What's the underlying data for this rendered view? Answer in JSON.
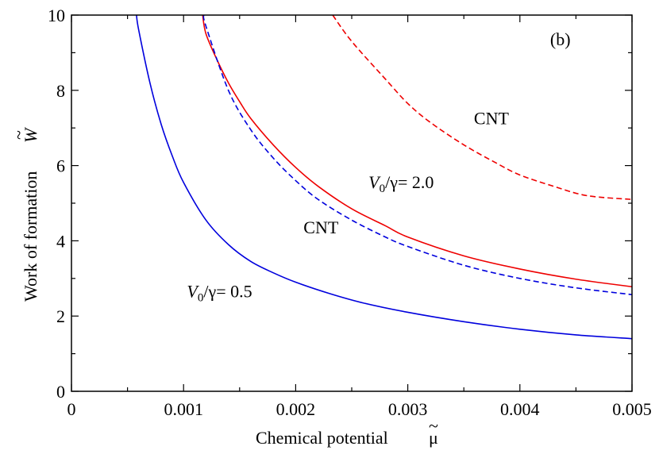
{
  "chart_data": {
    "type": "line",
    "panel_label": "(b)",
    "xlabel": "Chemical potential",
    "xlabel_symbol": "μ",
    "xlabel_symbol_accent": "~",
    "ylabel": "Work of formation",
    "ylabel_symbol": "W",
    "ylabel_symbol_accent": "~",
    "xlim": [
      0,
      0.005
    ],
    "ylim": [
      0,
      10
    ],
    "xticks": [
      0,
      0.001,
      0.002,
      0.003,
      0.004,
      0.005
    ],
    "xtick_labels": [
      "0",
      "0.001",
      "0.002",
      "0.003",
      "0.004",
      "0.005"
    ],
    "yticks": [
      0,
      2,
      4,
      6,
      8,
      10
    ],
    "ytick_labels": [
      "0",
      "2",
      "4",
      "6",
      "8",
      "10"
    ],
    "grid": false,
    "colors": {
      "blue": "#0000dd",
      "red": "#ee0000"
    },
    "series": [
      {
        "name": "V0/γ = 0.5",
        "color": "blue",
        "style": "solid",
        "x": [
          0.00058,
          0.0006,
          0.0007,
          0.0008,
          0.0009,
          0.001,
          0.0012,
          0.0014,
          0.0016,
          0.0018,
          0.002,
          0.0023,
          0.0026,
          0.003,
          0.0035,
          0.004,
          0.0045,
          0.005
        ],
        "y": [
          10.0,
          9.6,
          8.2,
          7.1,
          6.25,
          5.55,
          4.55,
          3.9,
          3.45,
          3.15,
          2.9,
          2.6,
          2.35,
          2.1,
          1.85,
          1.65,
          1.5,
          1.4
        ]
      },
      {
        "name": "V0/γ = 2.0",
        "color": "red",
        "style": "solid",
        "x": [
          0.00117,
          0.0012,
          0.0013,
          0.0014,
          0.0015,
          0.0016,
          0.0018,
          0.002,
          0.0022,
          0.0025,
          0.0028,
          0.003,
          0.0035,
          0.004,
          0.0045,
          0.005
        ],
        "y": [
          10.0,
          9.5,
          8.8,
          8.2,
          7.7,
          7.25,
          6.55,
          5.95,
          5.45,
          4.85,
          4.4,
          4.1,
          3.6,
          3.25,
          2.98,
          2.78
        ]
      },
      {
        "name": "CNT",
        "color": "blue",
        "style": "dashed",
        "x": [
          0.00118,
          0.0012,
          0.0014,
          0.0016,
          0.0018,
          0.002,
          0.0022,
          0.0025,
          0.0028,
          0.003,
          0.0035,
          0.004,
          0.0045,
          0.005
        ],
        "y": [
          10.0,
          9.7,
          8.0,
          6.95,
          6.2,
          5.6,
          5.1,
          4.55,
          4.1,
          3.85,
          3.35,
          3.0,
          2.75,
          2.57
        ]
      },
      {
        "name": "CNT",
        "color": "red",
        "style": "dashed",
        "x": [
          0.00233,
          0.0025,
          0.0028,
          0.003,
          0.0032,
          0.0035,
          0.0038,
          0.004,
          0.0043,
          0.0046,
          0.005
        ],
        "y": [
          10.0,
          9.3,
          8.3,
          7.65,
          7.15,
          6.55,
          6.05,
          5.75,
          5.45,
          5.2,
          5.1
        ]
      }
    ],
    "annotations": [
      {
        "kind": "ratio",
        "prefix": "V",
        "sub": "0",
        "suffix": "/γ= 2.0",
        "x": 0.00265,
        "y": 5.4
      },
      {
        "kind": "plain",
        "text": "CNT",
        "x": 0.00207,
        "y": 4.2
      },
      {
        "kind": "ratio",
        "prefix": "V",
        "sub": "0",
        "suffix": "/γ= 0.5",
        "x": 0.00103,
        "y": 2.5
      },
      {
        "kind": "plain",
        "text": "CNT",
        "x": 0.00359,
        "y": 7.1
      },
      {
        "kind": "plain",
        "text": "(b)",
        "x": 0.00427,
        "y": 9.2
      }
    ]
  }
}
